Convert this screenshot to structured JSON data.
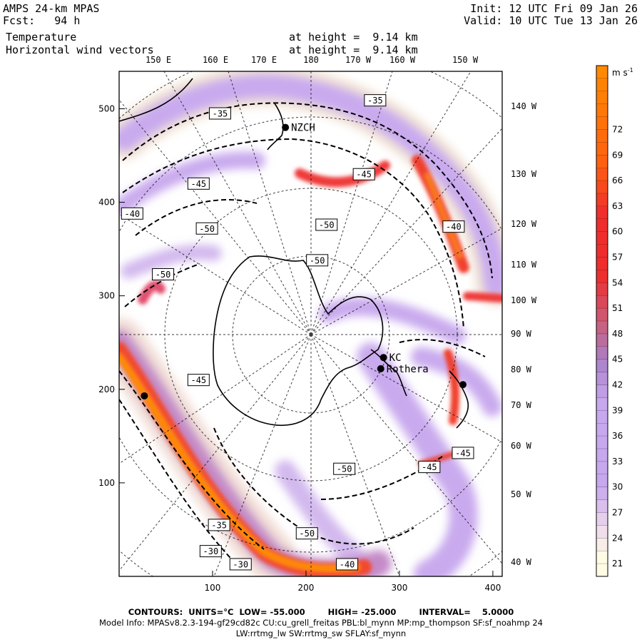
{
  "header": {
    "model": "AMPS 24-km MPAS",
    "fcst_label": "Fcst:",
    "fcst_value": "94 h",
    "init_label": "Init:",
    "init_value": "12 UTC Fri 09 Jan 26",
    "valid_label": "Valid:",
    "valid_value": "10 UTC Tue 13 Jan 26",
    "field1": "Temperature",
    "field2": "Horizontal wind vectors",
    "height1": "at height =  9.14 km",
    "height2": "at height =  9.14 km"
  },
  "map": {
    "x_ticks": [
      100,
      200,
      300,
      400
    ],
    "y_ticks": [
      100,
      200,
      300,
      400,
      500
    ],
    "x_range": [
      0,
      410
    ],
    "y_range": [
      0,
      540
    ],
    "top_lon_labels": [
      "150 E",
      "160 E",
      "170 E",
      "180",
      "170 W",
      "160 W",
      "150 W"
    ],
    "right_lon_labels": [
      "140 W",
      "130 W",
      "120 W",
      "110 W",
      "100 W",
      "90 W",
      "80 W",
      "70 W",
      "60 W",
      "50 W",
      "40 W"
    ],
    "stations": [
      {
        "name": "NZCH",
        "x": 178,
        "y": 480
      },
      {
        "name": "Rothera",
        "x": 280,
        "y": 222
      },
      {
        "name": "KC",
        "x": 283,
        "y": 234
      },
      {
        "name": "",
        "x": 368,
        "y": 205
      },
      {
        "name": "",
        "x": 27,
        "y": 193
      }
    ],
    "contour_labels": [
      {
        "text": "-35",
        "x": 274,
        "y": 509
      },
      {
        "text": "-35",
        "x": 108,
        "y": 495
      },
      {
        "text": "-45",
        "x": 85,
        "y": 420
      },
      {
        "text": "-45",
        "x": 262,
        "y": 430
      },
      {
        "text": "-40",
        "x": 14,
        "y": 388
      },
      {
        "text": "-50",
        "x": 94,
        "y": 372
      },
      {
        "text": "-50",
        "x": 222,
        "y": 376
      },
      {
        "text": "-40",
        "x": 358,
        "y": 374
      },
      {
        "text": "-50",
        "x": 212,
        "y": 338
      },
      {
        "text": "-50",
        "x": 47,
        "y": 323
      },
      {
        "text": "-45",
        "x": 85,
        "y": 210
      },
      {
        "text": "-45",
        "x": 368,
        "y": 132
      },
      {
        "text": "-45",
        "x": 332,
        "y": 117
      },
      {
        "text": "-50",
        "x": 241,
        "y": 115
      },
      {
        "text": "-35",
        "x": 107,
        "y": 55
      },
      {
        "text": "-50",
        "x": 201,
        "y": 46
      },
      {
        "text": "-30",
        "x": 98,
        "y": 27
      },
      {
        "text": "-30",
        "x": 130,
        "y": 13
      },
      {
        "text": "-40",
        "x": 244,
        "y": 13
      }
    ]
  },
  "colorbar": {
    "units": "m s",
    "units_exp": "-1",
    "ticks": [
      21,
      24,
      27,
      30,
      33,
      36,
      39,
      42,
      45,
      48,
      51,
      54,
      57,
      60,
      63,
      66,
      69,
      72
    ],
    "range": [
      19.5,
      79.5
    ],
    "colors": {
      "low": "#fffbe4",
      "mid": "#efdcec",
      "purple": "#c6a8ee",
      "purple_dark": "#aa80c8",
      "rose": "#c8607e",
      "red": "#f02d2d",
      "orange": "#ff8c00"
    }
  },
  "footer": {
    "contours": "CONTOURS:  UNITS=°C  LOW= -55.000        HIGH= -25.000        INTERVAL=    5.0000",
    "model_info": "Model Info: MPASv8.2.3-194-gf29cd82c CU:cu_grell_freitas PBL:bl_mynn MP:mp_thompson SF:sf_noahmp 24",
    "model_info2": "LW:rrtmg_lw SW:rrtmg_sw SFLAY:sf_mynn"
  }
}
